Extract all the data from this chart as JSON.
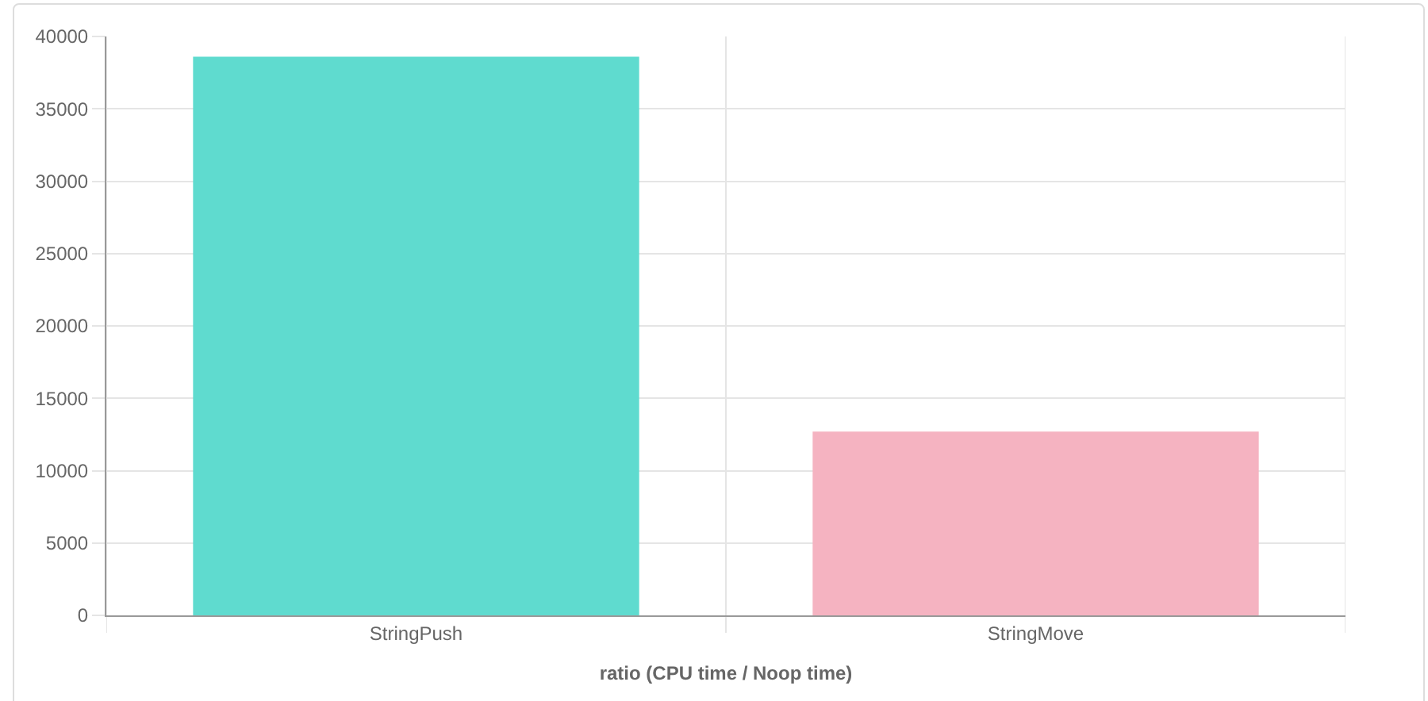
{
  "chart_data": {
    "type": "bar",
    "xlabel": "ratio (CPU time / Noop time)",
    "categories": [
      "StringPush",
      "StringMove"
    ],
    "values": [
      38600,
      12700
    ],
    "colors": [
      "#5fdbcf",
      "#f5b3c1"
    ],
    "ylim": [
      0,
      40000
    ],
    "yticks": [
      0,
      5000,
      10000,
      15000,
      20000,
      25000,
      30000,
      35000,
      40000
    ],
    "grid": true
  }
}
